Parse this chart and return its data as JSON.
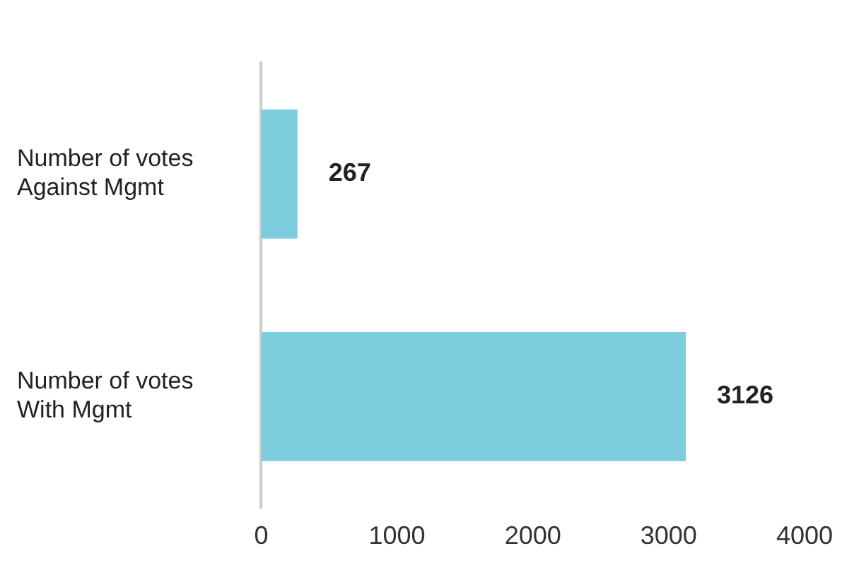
{
  "chart_data": {
    "type": "bar",
    "orientation": "horizontal",
    "categories": [
      "Number of votes\nAgainst Mgmt",
      "Number of votes\nWith Mgmt"
    ],
    "values": [
      267,
      3126
    ],
    "color": "#7ecdde",
    "xlim": [
      0,
      4000
    ],
    "xticks": [
      0,
      1000,
      2000,
      3000,
      4000
    ],
    "data_labels": true,
    "grid": false,
    "legend": false
  }
}
